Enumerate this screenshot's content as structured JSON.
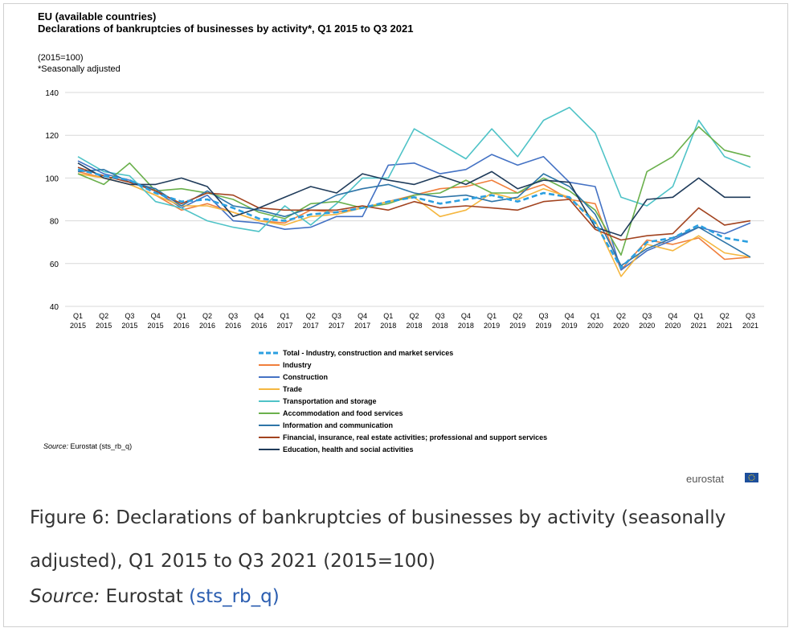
{
  "chart_data": {
    "type": "line",
    "title_lines": [
      "EU (available countries)",
      "Declarations of bankruptcies of businesses by activity*, Q1 2015 to Q3 2021"
    ],
    "subtitle_lines": [
      "(2015=100)",
      "*Seasonally adjusted"
    ],
    "ylim": [
      40,
      140
    ],
    "yticks": [
      40,
      60,
      80,
      100,
      120,
      140
    ],
    "grid": true,
    "legend_position": "bottom-center",
    "categories": [
      [
        "Q1",
        "2015"
      ],
      [
        "Q2",
        "2015"
      ],
      [
        "Q3",
        "2015"
      ],
      [
        "Q4",
        "2015"
      ],
      [
        "Q1",
        "2016"
      ],
      [
        "Q2",
        "2016"
      ],
      [
        "Q3",
        "2016"
      ],
      [
        "Q4",
        "2016"
      ],
      [
        "Q1",
        "2017"
      ],
      [
        "Q2",
        "2017"
      ],
      [
        "Q3",
        "2017"
      ],
      [
        "Q4",
        "2017"
      ],
      [
        "Q1",
        "2018"
      ],
      [
        "Q2",
        "2018"
      ],
      [
        "Q3",
        "2018"
      ],
      [
        "Q4",
        "2018"
      ],
      [
        "Q1",
        "2019"
      ],
      [
        "Q2",
        "2019"
      ],
      [
        "Q3",
        "2019"
      ],
      [
        "Q4",
        "2019"
      ],
      [
        "Q1",
        "2020"
      ],
      [
        "Q2",
        "2020"
      ],
      [
        "Q3",
        "2020"
      ],
      [
        "Q4",
        "2020"
      ],
      [
        "Q1",
        "2021"
      ],
      [
        "Q2",
        "2021"
      ],
      [
        "Q3",
        "2021"
      ]
    ],
    "series": [
      {
        "name": "Total - Industry, construction and market services",
        "color": "#2b9fe0",
        "dashed": true,
        "values": [
          104,
          101,
          99,
          93,
          89,
          90,
          86,
          81,
          80,
          83,
          84,
          86,
          89,
          91,
          88,
          90,
          92,
          89,
          93,
          91,
          79,
          58,
          70,
          72,
          78,
          72,
          70
        ]
      },
      {
        "name": "Industry",
        "color": "#f07f3c",
        "dashed": false,
        "values": [
          103,
          100,
          97,
          92,
          85,
          88,
          84,
          80,
          79,
          85,
          84,
          86,
          89,
          92,
          95,
          96,
          99,
          93,
          97,
          90,
          88,
          57,
          71,
          69,
          72,
          62,
          63
        ]
      },
      {
        "name": "Construction",
        "color": "#4472c4",
        "dashed": false,
        "values": [
          108,
          102,
          99,
          94,
          86,
          92,
          80,
          79,
          76,
          77,
          82,
          82,
          106,
          107,
          102,
          104,
          111,
          106,
          110,
          98,
          96,
          57,
          66,
          71,
          77,
          74,
          79
        ]
      },
      {
        "name": "Trade",
        "color": "#f5b740",
        "dashed": false,
        "values": [
          102,
          100,
          97,
          92,
          87,
          87,
          84,
          80,
          78,
          82,
          83,
          86,
          89,
          91,
          82,
          85,
          93,
          90,
          95,
          91,
          80,
          54,
          69,
          66,
          73,
          65,
          63
        ]
      },
      {
        "name": "Transportation and storage",
        "color": "#4fc3c7",
        "dashed": false,
        "values": [
          110,
          103,
          101,
          89,
          86,
          80,
          77,
          75,
          87,
          78,
          88,
          100,
          100,
          123,
          116,
          109,
          123,
          110,
          127,
          133,
          121,
          91,
          87,
          96,
          127,
          110,
          105
        ]
      },
      {
        "name": "Accommodation and food services",
        "color": "#6ab04c",
        "dashed": false,
        "values": [
          102,
          97,
          107,
          94,
          95,
          93,
          90,
          84,
          81,
          88,
          89,
          86,
          88,
          92,
          93,
          99,
          93,
          93,
          100,
          94,
          85,
          64,
          103,
          110,
          124,
          113,
          110
        ]
      },
      {
        "name": "Information and communication",
        "color": "#2e75a8",
        "dashed": false,
        "values": [
          103,
          104,
          98,
          95,
          87,
          94,
          87,
          85,
          82,
          86,
          92,
          95,
          97,
          93,
          91,
          92,
          89,
          91,
          102,
          96,
          83,
          59,
          67,
          72,
          77,
          70,
          63
        ]
      },
      {
        "name": "Financial, insurance, real estate activities; professional and support services",
        "color": "#a2431f",
        "dashed": false,
        "values": [
          105,
          101,
          98,
          94,
          88,
          93,
          92,
          86,
          85,
          85,
          85,
          87,
          85,
          89,
          86,
          87,
          86,
          85,
          89,
          90,
          76,
          71,
          73,
          74,
          86,
          78,
          80
        ]
      },
      {
        "name": "Education,  health and social activities",
        "color": "#1f3b5a",
        "dashed": false,
        "values": [
          107,
          100,
          97,
          97,
          100,
          96,
          82,
          86,
          91,
          96,
          93,
          102,
          99,
          97,
          101,
          97,
          103,
          95,
          99,
          98,
          77,
          73,
          90,
          91,
          100,
          91,
          91
        ]
      }
    ]
  },
  "source_note": {
    "label": "Source:",
    "text": " Eurostat (sts_rb_q)"
  },
  "brand": "eurostat",
  "caption": {
    "text": "Figure 6: Declarations of bankruptcies of businesses by activity (seasonally adjusted), Q1 2015 to Q3 2021 (2015=100)",
    "source_label": "Source:",
    "source_text": " Eurostat ",
    "source_link": "(sts_rb_q)"
  },
  "colors": {
    "grid": "#d9d9d9",
    "flag_blue": "#1d4f9c",
    "flag_stars": "#f7d117"
  }
}
